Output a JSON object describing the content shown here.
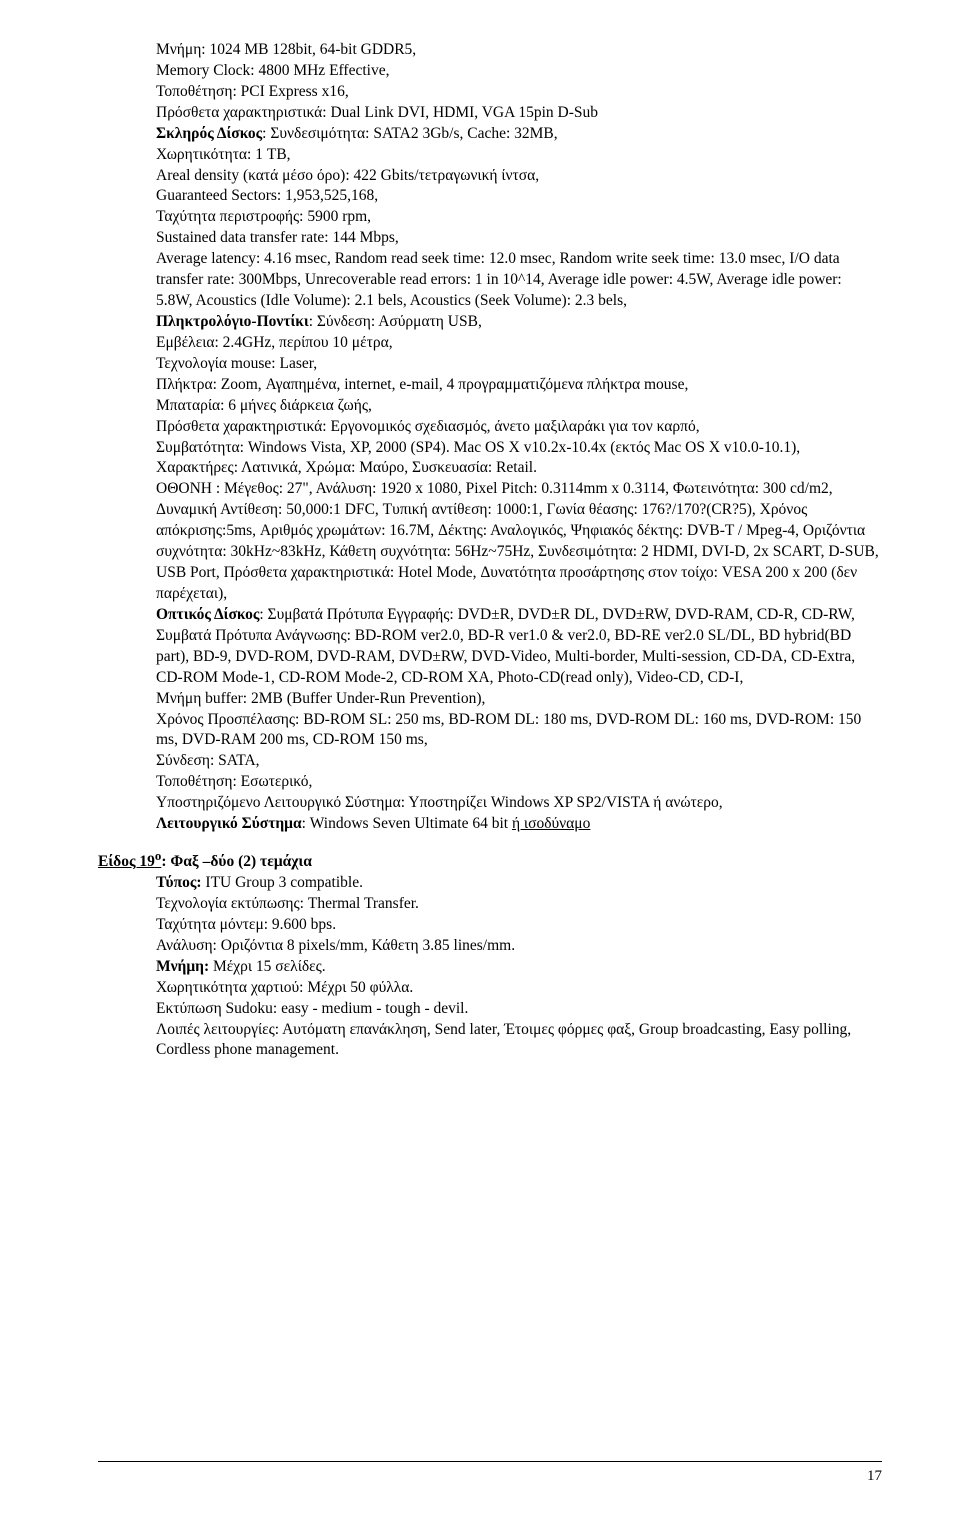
{
  "main": {
    "l1": "Μνήμη: 1024 MB 128bit, 64-bit GDDR5,",
    "l2": "Memory Clock: 4800 MHz Effective,",
    "l3": "Τοποθέτηση: PCI Express x16,",
    "l4": "Πρόσθετα χαρακτηριστικά: Dual Link DVI, HDMI, VGA 15pin D-Sub",
    "l5a": "Σκληρός Δίσκος",
    "l5b": ": Συνδεσιμότητα: SATA2 3Gb/s, Cache: 32MB,",
    "l6": "Χωρητικότητα: 1 TB,",
    "l7": "Areal density (κατά μέσο όρο): 422 Gbits/τετραγωνική ίντσα,",
    "l8": "Guaranteed Sectors: 1,953,525,168,",
    "l9": "Ταχύτητα περιστροφής: 5900 rpm,",
    "l10": "Sustained data transfer rate: 144 Mbps,",
    "l11": "Average latency: 4.16 msec, Random read seek time: 12.0 msec, Random write seek time: 13.0 msec,  I/O data transfer rate: 300Mbps, Unrecoverable read errors: 1 in 10^14, Average idle power: 4.5W,   Average idle power: 5.8W, Acoustics (Idle Volume): 2.1 bels, Acoustics (Seek Volume): 2.3 bels,",
    "l12a": "Πληκτρολόγιο-Ποντίκι",
    "l12b": ": Σύνδεση: Ασύρματη USB,",
    "l13": "Εμβέλεια: 2.4GHz, περίπου 10 μέτρα,",
    "l14": "Τεχνολογία mouse: Laser,",
    "l15": "Πλήκτρα: Zoom, Αγαπημένα, internet, e-mail, 4 προγραμματιζόμενα πλήκτρα mouse,",
    "l16": "Μπαταρία: 6 μήνες διάρκεια ζωής,",
    "l17": "Πρόσθετα χαρακτηριστικά: Εργονομικός σχεδιασμός, άνετο μαξιλαράκι για τον καρπό,",
    "l18": "Συμβατότητα: Windows Vista, XP, 2000 (SP4). Mac OS X v10.2x-10.4x (εκτός Mac OS X v10.0-10.1), Χαρακτήρες: Λατινικά, Χρώμα: Μαύρο, Συσκευασία: Retail.",
    "l19": "ΟΘΟΝΗ : Μέγεθος: 27\", Ανάλυση: 1920 x 1080, Pixel Pitch: 0.3114mm x 0.3114, Φωτεινότητα: 300 cd/m2, Δυναμική Αντίθεση: 50,000:1 DFC, Τυπική αντίθεση: 1000:1,   Γωνία θέασης: 176?/170?(CR?5), Χρόνος απόκρισης:5ms, Αριθμός χρωμάτων: 16.7M,   Δέκτης: Αναλογικός, Ψηφιακός δέκτης: DVB-T / Mpeg-4, Οριζόντια συχνότητα: 30kHz~83kHz,  Κάθετη συχνότητα: 56Hz~75Hz, Συνδεσιμότητα: 2 HDMI, DVI-D, 2x SCART, D-SUB, USB Port, Πρόσθετα χαρακτηριστικά: Hotel Mode, Δυνατότητα προσάρτησης στον τοίχο: VESA 200 x 200 (δεν παρέχεται),",
    "l20a": "Οπτικός Δίσκος",
    "l20b": ": Συμβατά Πρότυπα Εγγραφής: DVD±R, DVD±R DL, DVD±RW, DVD-RAM, CD-R, CD-RW,",
    "l21": "Συμβατά Πρότυπα Ανάγνωσης: BD-ROM ver2.0, BD-R ver1.0 & ver2.0, BD-RE ver2.0 SL/DL, BD hybrid(BD part), BD-9, DVD-ROM, DVD-RAM, DVD±RW, DVD-Video, Multi-border, Multi-session, CD-DA, CD-Extra, CD-ROM Mode-1, CD-ROM Mode-2, CD-ROM XA, Photo-CD(read only), Video-CD, CD-I,",
    "l22": "Μνήμη buffer: 2MB (Buffer Under-Run Prevention),",
    "l23": "Χρόνος Προσπέλασης: BD-ROM SL: 250 ms, BD-ROM DL: 180 ms, DVD-ROM DL: 160 ms, DVD-ROM: 150 ms, DVD-RAM 200 ms, CD-ROM 150 ms,",
    "l24": "Σύνδεση: SATA,",
    "l25": "Τοποθέτηση: Εσωτερικό,",
    "l26": "Υποστηριζόμενο Λειτουργικό Σύστημα: Υποστηρίζει Windows XP SP2/VISTA ή ανώτερο,",
    "l27a": "Λειτουργικό Σύστημα",
    "l27b": ": Windows Seven Ultimate 64 bit ",
    "l27c": "ή ισοδύναμο"
  },
  "sec2": {
    "head_a": "Είδος 19",
    "head_sup": "ο",
    "head_b": ":  Φαξ –δύο (2) τεμάχια",
    "r1a": "Τύπος:",
    "r1b": " ITU Group 3 compatible.",
    "r2": "Τεχνολογία εκτύπωσης: Thermal Transfer.",
    "r3": "Ταχύτητα μόντεμ: 9.600 bps.",
    "r4": "Ανάλυση: Οριζόντια 8 pixels/mm, Κάθετη 3.85 lines/mm.",
    "r5a": "Μνήμη:",
    "r5b": " Μέχρι 15 σελίδες.",
    "r6": "Χωρητικότητα χαρτιού: Μέχρι 50 φύλλα.",
    "r7": "Εκτύπωση Sudoku: easy - medium - tough - devil.",
    "r8": "Λοιπές λειτουργίες: Αυτόματη επανάκληση, Send later, Έτοιμες φόρμες φαξ, Group broadcasting, Easy polling, Cordless phone management."
  },
  "page": "17"
}
